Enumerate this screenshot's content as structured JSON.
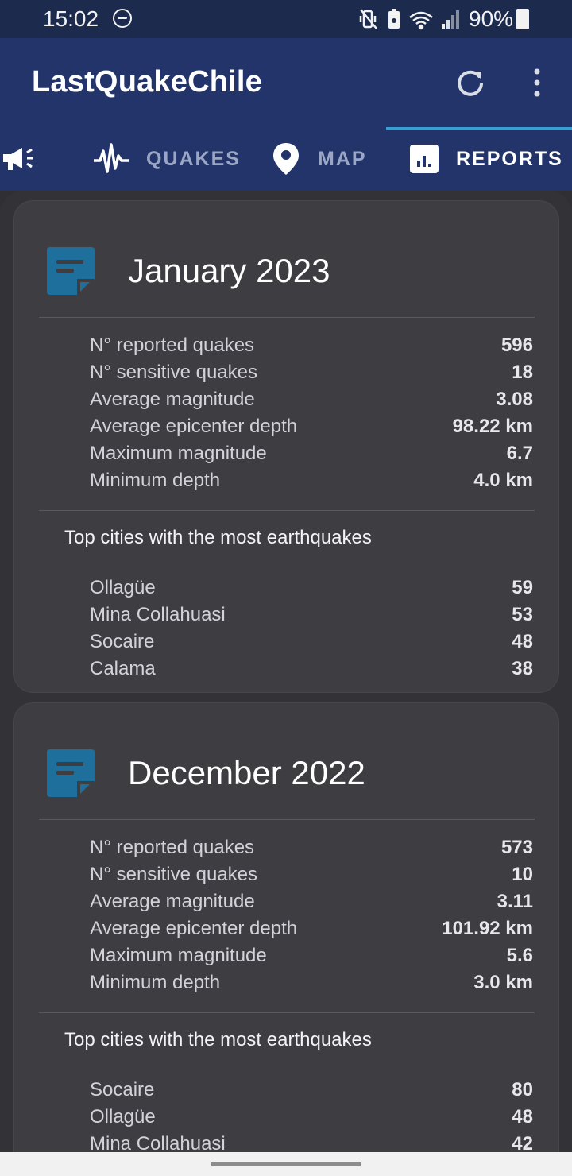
{
  "status_bar": {
    "time": "15:02",
    "battery": "90%"
  },
  "app": {
    "title": "LastQuakeChile"
  },
  "tabs": [
    {
      "label": "",
      "icon": "megaphone-icon"
    },
    {
      "label": "QUAKES",
      "icon": "seismograph-icon"
    },
    {
      "label": "MAP",
      "icon": "map-pin-icon"
    },
    {
      "label": "REPORTS",
      "icon": "report-chart-icon",
      "active": true
    }
  ],
  "colors": {
    "app_bar": "#22346a",
    "accent": "#3b9ed1",
    "report_icon": "#1f6f9c"
  },
  "reports": [
    {
      "title": "January 2023",
      "stats": [
        {
          "label": "N° reported quakes",
          "value": "596"
        },
        {
          "label": "N° sensitive quakes",
          "value": "18"
        },
        {
          "label": "Average magnitude",
          "value": "3.08"
        },
        {
          "label": "Average epicenter depth",
          "value": "98.22 km"
        },
        {
          "label": "Maximum magnitude",
          "value": "6.7"
        },
        {
          "label": "Minimum depth",
          "value": "4.0 km"
        }
      ],
      "cities_title": "Top cities with the most earthquakes",
      "cities": [
        {
          "name": "Ollagüe",
          "count": "59"
        },
        {
          "name": "Mina Collahuasi",
          "count": "53"
        },
        {
          "name": "Socaire",
          "count": "48"
        },
        {
          "name": "Calama",
          "count": "38"
        }
      ]
    },
    {
      "title": "December 2022",
      "stats": [
        {
          "label": "N° reported quakes",
          "value": "573"
        },
        {
          "label": "N° sensitive quakes",
          "value": "10"
        },
        {
          "label": "Average magnitude",
          "value": "3.11"
        },
        {
          "label": "Average epicenter depth",
          "value": "101.92 km"
        },
        {
          "label": "Maximum magnitude",
          "value": "5.6"
        },
        {
          "label": "Minimum depth",
          "value": "3.0 km"
        }
      ],
      "cities_title": "Top cities with the most earthquakes",
      "cities": [
        {
          "name": "Socaire",
          "count": "80"
        },
        {
          "name": "Ollagüe",
          "count": "48"
        },
        {
          "name": "Mina Collahuasi",
          "count": "42"
        }
      ]
    }
  ]
}
